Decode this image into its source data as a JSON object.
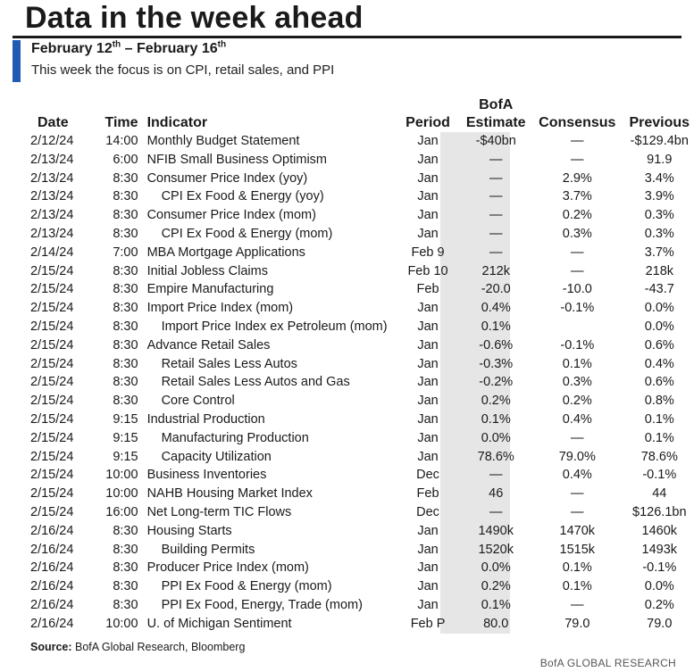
{
  "title": "Data in the week ahead",
  "subtitle": {
    "prefix": "February 12",
    "prefix_sup": "th",
    "middle": " – February 16",
    "suffix_sup": "th"
  },
  "description": "This week the focus is on CPI, retail sales, and PPI",
  "headers": {
    "date": "Date",
    "time": "Time",
    "indicator": "Indicator",
    "period": "Period",
    "estimate_line1": "BofA",
    "estimate_line2": "Estimate",
    "consensus": "Consensus",
    "previous": "Previous"
  },
  "colors": {
    "accent": "#1f5bb3",
    "shade": "#e6e6e6",
    "rule": "#1a1a1a"
  },
  "rows": [
    {
      "date": "2/12/24",
      "time": "14:00",
      "indicator": "Monthly Budget Statement",
      "indent": false,
      "period": "Jan",
      "estimate": "-$40bn",
      "consensus": "—",
      "previous": "-$129.4bn"
    },
    {
      "date": "2/13/24",
      "time": "6:00",
      "indicator": "NFIB Small Business Optimism",
      "indent": false,
      "period": "Jan",
      "estimate": "—",
      "consensus": "—",
      "previous": "91.9"
    },
    {
      "date": "2/13/24",
      "time": "8:30",
      "indicator": "Consumer Price Index (yoy)",
      "indent": false,
      "period": "Jan",
      "estimate": "—",
      "consensus": "2.9%",
      "previous": "3.4%"
    },
    {
      "date": "2/13/24",
      "time": "8:30",
      "indicator": "CPI Ex Food & Energy (yoy)",
      "indent": true,
      "period": "Jan",
      "estimate": "—",
      "consensus": "3.7%",
      "previous": "3.9%"
    },
    {
      "date": "2/13/24",
      "time": "8:30",
      "indicator": "Consumer Price Index (mom)",
      "indent": false,
      "period": "Jan",
      "estimate": "—",
      "consensus": "0.2%",
      "previous": "0.3%"
    },
    {
      "date": "2/13/24",
      "time": "8:30",
      "indicator": "CPI Ex Food & Energy (mom)",
      "indent": true,
      "period": "Jan",
      "estimate": "—",
      "consensus": "0.3%",
      "previous": "0.3%"
    },
    {
      "date": "2/14/24",
      "time": "7:00",
      "indicator": "MBA Mortgage Applications",
      "indent": false,
      "period": "Feb 9",
      "estimate": "—",
      "consensus": "—",
      "previous": "3.7%"
    },
    {
      "date": "2/15/24",
      "time": "8:30",
      "indicator": "Initial Jobless Claims",
      "indent": false,
      "period": "Feb 10",
      "estimate": "212k",
      "consensus": "—",
      "previous": "218k"
    },
    {
      "date": "2/15/24",
      "time": "8:30",
      "indicator": "Empire Manufacturing",
      "indent": false,
      "period": "Feb",
      "estimate": "-20.0",
      "consensus": "-10.0",
      "previous": "-43.7"
    },
    {
      "date": "2/15/24",
      "time": "8:30",
      "indicator": "Import Price Index (mom)",
      "indent": false,
      "period": "Jan",
      "estimate": "0.4%",
      "consensus": "-0.1%",
      "previous": "0.0%"
    },
    {
      "date": "2/15/24",
      "time": "8:30",
      "indicator": "Import Price Index ex Petroleum (mom)",
      "indent": true,
      "period": "Jan",
      "estimate": "0.1%",
      "consensus": "",
      "previous": "0.0%"
    },
    {
      "date": "2/15/24",
      "time": "8:30",
      "indicator": "Advance Retail Sales",
      "indent": false,
      "period": "Jan",
      "estimate": "-0.6%",
      "consensus": "-0.1%",
      "previous": "0.6%"
    },
    {
      "date": "2/15/24",
      "time": "8:30",
      "indicator": "Retail Sales Less Autos",
      "indent": true,
      "period": "Jan",
      "estimate": "-0.3%",
      "consensus": "0.1%",
      "previous": "0.4%"
    },
    {
      "date": "2/15/24",
      "time": "8:30",
      "indicator": "Retail Sales Less Autos and Gas",
      "indent": true,
      "period": "Jan",
      "estimate": "-0.2%",
      "consensus": "0.3%",
      "previous": "0.6%"
    },
    {
      "date": "2/15/24",
      "time": "8:30",
      "indicator": "Core Control",
      "indent": true,
      "period": "Jan",
      "estimate": "0.2%",
      "consensus": "0.2%",
      "previous": "0.8%"
    },
    {
      "date": "2/15/24",
      "time": "9:15",
      "indicator": "Industrial Production",
      "indent": false,
      "period": "Jan",
      "estimate": "0.1%",
      "consensus": "0.4%",
      "previous": "0.1%"
    },
    {
      "date": "2/15/24",
      "time": "9:15",
      "indicator": "Manufacturing Production",
      "indent": true,
      "period": "Jan",
      "estimate": "0.0%",
      "consensus": "—",
      "previous": "0.1%"
    },
    {
      "date": "2/15/24",
      "time": "9:15",
      "indicator": "Capacity Utilization",
      "indent": true,
      "period": "Jan",
      "estimate": "78.6%",
      "consensus": "79.0%",
      "previous": "78.6%"
    },
    {
      "date": "2/15/24",
      "time": "10:00",
      "indicator": "Business Inventories",
      "indent": false,
      "period": "Dec",
      "estimate": "—",
      "consensus": "0.4%",
      "previous": "-0.1%"
    },
    {
      "date": "2/15/24",
      "time": "10:00",
      "indicator": "NAHB Housing Market Index",
      "indent": false,
      "period": "Feb",
      "estimate": "46",
      "consensus": "—",
      "previous": "44"
    },
    {
      "date": "2/15/24",
      "time": "16:00",
      "indicator": "Net Long-term TIC Flows",
      "indent": false,
      "period": "Dec",
      "estimate": "—",
      "consensus": "—",
      "previous": "$126.1bn"
    },
    {
      "date": "2/16/24",
      "time": "8:30",
      "indicator": "Housing Starts",
      "indent": false,
      "period": "Jan",
      "estimate": "1490k",
      "consensus": "1470k",
      "previous": "1460k"
    },
    {
      "date": "2/16/24",
      "time": "8:30",
      "indicator": "Building Permits",
      "indent": true,
      "period": "Jan",
      "estimate": "1520k",
      "consensus": "1515k",
      "previous": "1493k"
    },
    {
      "date": "2/16/24",
      "time": "8:30",
      "indicator": "Producer Price Index (mom)",
      "indent": false,
      "period": "Jan",
      "estimate": "0.0%",
      "consensus": "0.1%",
      "previous": "-0.1%"
    },
    {
      "date": "2/16/24",
      "time": "8:30",
      "indicator": "PPI Ex Food & Energy (mom)",
      "indent": true,
      "period": "Jan",
      "estimate": "0.2%",
      "consensus": "0.1%",
      "previous": "0.0%"
    },
    {
      "date": "2/16/24",
      "time": "8:30",
      "indicator": "PPI Ex Food, Energy, Trade (mom)",
      "indent": true,
      "period": "Jan",
      "estimate": "0.1%",
      "consensus": "—",
      "previous": "0.2%"
    },
    {
      "date": "2/16/24",
      "time": "10:00",
      "indicator": "U. of Michigan Sentiment",
      "indent": false,
      "period": "Feb P",
      "estimate": "80.0",
      "consensus": "79.0",
      "previous": "79.0"
    }
  ],
  "source": {
    "label": "Source:",
    "text": " BofA Global Research, Bloomberg"
  },
  "brand": "BofA GLOBAL RESEARCH"
}
